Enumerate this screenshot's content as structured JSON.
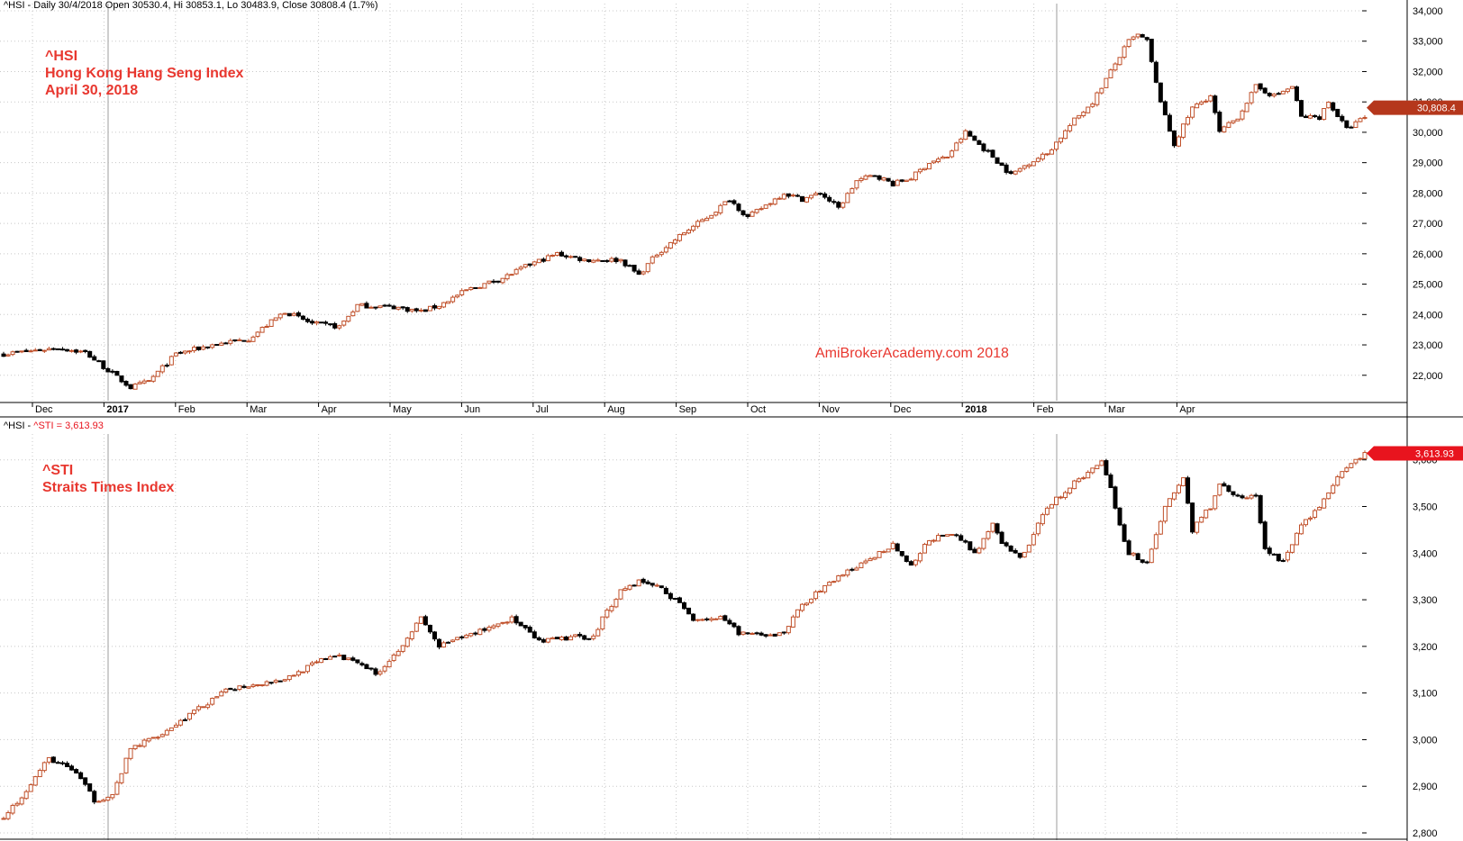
{
  "panels": {
    "top": {
      "header": "^HSI - Daily 30/4/2018 Open 30530.4, Hi 30853.1, Lo 30483.9, Close 30808.4 (1.7%)",
      "annotation": [
        "^HSI",
        "Hong Kong Hang Seng Index",
        "April 30, 2018"
      ],
      "watermark": "AmiBrokerAcademy.com   2018",
      "last_price_label": "30,808.4"
    },
    "bottom": {
      "header_prefix": "^HSI - ",
      "header_value": "^STI = 3,613.93",
      "annotation": [
        "^STI",
        "Straits Times Index"
      ],
      "last_price_label": "3,613.93"
    }
  },
  "colors": {
    "up": "#c0502a",
    "down": "#000000",
    "grid": "#c8c8c8",
    "annotation": "#e8372f",
    "price_tag_top": "#b5371c",
    "price_tag_bottom": "#e8141e"
  },
  "chart_data": [
    {
      "type": "candlestick",
      "title": "^HSI",
      "series_name": "Hong Kong Hang Seng Index",
      "ylim": [
        21400,
        34000
      ],
      "y_ticks": [
        22000,
        23000,
        24000,
        25000,
        26000,
        27000,
        28000,
        29000,
        30000,
        31000,
        32000,
        33000,
        34000
      ],
      "y_tick_labels": [
        "22,000",
        "23,000",
        "24,000",
        "25,000",
        "26,000",
        "27,000",
        "28,000",
        "29,000",
        "30,000",
        "31,000",
        "32,000",
        "33,000",
        "34,000"
      ],
      "x_labels": [
        "Dec",
        "2017",
        "Feb",
        "Mar",
        "Apr",
        "May",
        "Jun",
        "Jul",
        "Aug",
        "Sep",
        "Oct",
        "Nov",
        "Dec",
        "2018",
        "Feb",
        "Mar",
        "Apr"
      ],
      "grid": true,
      "last_close": 30808.4,
      "keypoints": [
        [
          0,
          22700
        ],
        [
          12,
          22900
        ],
        [
          18,
          22750
        ],
        [
          24,
          22050
        ],
        [
          28,
          21600
        ],
        [
          32,
          21800
        ],
        [
          38,
          22700
        ],
        [
          46,
          23000
        ],
        [
          54,
          23200
        ],
        [
          62,
          24100
        ],
        [
          68,
          23700
        ],
        [
          74,
          23600
        ],
        [
          78,
          24300
        ],
        [
          86,
          24250
        ],
        [
          92,
          24100
        ],
        [
          96,
          24300
        ],
        [
          102,
          24800
        ],
        [
          110,
          25200
        ],
        [
          116,
          25650
        ],
        [
          122,
          26000
        ],
        [
          128,
          25800
        ],
        [
          136,
          25800
        ],
        [
          140,
          25300
        ],
        [
          144,
          26000
        ],
        [
          150,
          26700
        ],
        [
          156,
          27300
        ],
        [
          160,
          27800
        ],
        [
          164,
          27200
        ],
        [
          168,
          27600
        ],
        [
          172,
          28000
        ],
        [
          176,
          27800
        ],
        [
          180,
          28000
        ],
        [
          184,
          27500
        ],
        [
          188,
          28400
        ],
        [
          192,
          28600
        ],
        [
          196,
          28300
        ],
        [
          200,
          28500
        ],
        [
          204,
          29000
        ],
        [
          208,
          29200
        ],
        [
          212,
          30000
        ],
        [
          218,
          29200
        ],
        [
          222,
          28600
        ],
        [
          226,
          29000
        ],
        [
          230,
          29300
        ],
        [
          236,
          30400
        ],
        [
          240,
          31000
        ],
        [
          244,
          32000
        ],
        [
          248,
          33000
        ],
        [
          250,
          33200
        ],
        [
          252,
          33000
        ],
        [
          254,
          31600
        ],
        [
          256,
          30500
        ],
        [
          258,
          29600
        ],
        [
          262,
          30800
        ],
        [
          266,
          31200
        ],
        [
          268,
          30000
        ],
        [
          272,
          30500
        ],
        [
          276,
          31500
        ],
        [
          280,
          31200
        ],
        [
          284,
          31500
        ],
        [
          286,
          30500
        ],
        [
          290,
          30500
        ],
        [
          292,
          31000
        ],
        [
          296,
          30100
        ],
        [
          300,
          30500
        ]
      ]
    },
    {
      "type": "candlestick",
      "title": "^STI",
      "series_name": "Straits Times Index",
      "ylim": [
        2800,
        3640
      ],
      "y_ticks": [
        2800,
        2900,
        3000,
        3100,
        3200,
        3300,
        3400,
        3500,
        3600
      ],
      "y_tick_labels": [
        "2,800",
        "2,900",
        "3,000",
        "3,100",
        "3,200",
        "3,300",
        "3,400",
        "3,500",
        "3,600"
      ],
      "grid": true,
      "last_close": 3613.93,
      "keypoints": [
        [
          0,
          2830
        ],
        [
          4,
          2880
        ],
        [
          10,
          2960
        ],
        [
          16,
          2930
        ],
        [
          20,
          2870
        ],
        [
          24,
          2880
        ],
        [
          28,
          2980
        ],
        [
          36,
          3020
        ],
        [
          42,
          3060
        ],
        [
          50,
          3110
        ],
        [
          56,
          3120
        ],
        [
          62,
          3130
        ],
        [
          68,
          3160
        ],
        [
          72,
          3180
        ],
        [
          78,
          3170
        ],
        [
          82,
          3140
        ],
        [
          86,
          3180
        ],
        [
          92,
          3260
        ],
        [
          96,
          3200
        ],
        [
          104,
          3230
        ],
        [
          112,
          3260
        ],
        [
          118,
          3210
        ],
        [
          126,
          3220
        ],
        [
          130,
          3220
        ],
        [
          132,
          3260
        ],
        [
          136,
          3320
        ],
        [
          140,
          3340
        ],
        [
          144,
          3330
        ],
        [
          148,
          3300
        ],
        [
          152,
          3260
        ],
        [
          158,
          3260
        ],
        [
          162,
          3230
        ],
        [
          168,
          3220
        ],
        [
          172,
          3230
        ],
        [
          176,
          3290
        ],
        [
          184,
          3350
        ],
        [
          190,
          3380
        ],
        [
          196,
          3420
        ],
        [
          200,
          3370
        ],
        [
          204,
          3430
        ],
        [
          210,
          3440
        ],
        [
          214,
          3400
        ],
        [
          218,
          3460
        ],
        [
          220,
          3420
        ],
        [
          224,
          3390
        ],
        [
          226,
          3420
        ],
        [
          230,
          3500
        ],
        [
          236,
          3550
        ],
        [
          240,
          3580
        ],
        [
          242,
          3600
        ],
        [
          244,
          3540
        ],
        [
          246,
          3460
        ],
        [
          248,
          3400
        ],
        [
          252,
          3380
        ],
        [
          256,
          3500
        ],
        [
          260,
          3560
        ],
        [
          262,
          3450
        ],
        [
          266,
          3500
        ],
        [
          268,
          3550
        ],
        [
          272,
          3520
        ],
        [
          276,
          3520
        ],
        [
          278,
          3410
        ],
        [
          282,
          3380
        ],
        [
          286,
          3460
        ],
        [
          290,
          3500
        ],
        [
          294,
          3560
        ],
        [
          296,
          3580
        ],
        [
          300,
          3613.93
        ]
      ]
    }
  ]
}
